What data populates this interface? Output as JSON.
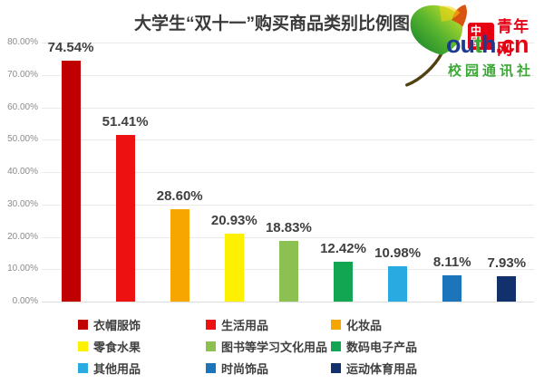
{
  "title": "大学生“双十一”购买商品类别比例图",
  "logo": {
    "leaf_icon": "ginkgo-leaf-icon",
    "brand_cn_boxed": "中國",
    "brand_cn": "青年网",
    "domain_ou": "ou",
    "domain_t": "t",
    "domain_h": "h",
    "domain_cn": ".cn",
    "brand_sub": "校园通讯社",
    "brand_red": "#e60012",
    "brand_navy": "#1d3a8f",
    "brand_green": "#3aa935"
  },
  "chart_data": {
    "type": "bar",
    "title": "大学生“双十一”购买商品类别比例图",
    "categories": [
      "衣帽服饰",
      "生活用品",
      "化妆品",
      "零食水果",
      "图书等学习文化用品",
      "数码电子产品",
      "其他用品",
      "时尚饰品",
      "运动体育用品"
    ],
    "values": [
      74.54,
      51.41,
      28.6,
      20.93,
      18.83,
      12.42,
      10.98,
      8.11,
      7.93
    ],
    "value_labels": [
      "74.54%",
      "51.41%",
      "28.60%",
      "20.93%",
      "18.83%",
      "12.42%",
      "10.98%",
      "8.11%",
      "7.93%"
    ],
    "colors": [
      "#c00000",
      "#ee1111",
      "#f7a600",
      "#fdf000",
      "#8cc152",
      "#12a653",
      "#29abe2",
      "#1c75bb",
      "#12306b"
    ],
    "xlabel": "",
    "ylabel": "",
    "ylim": [
      0,
      80
    ],
    "ytick_step": 10,
    "ytick_labels": [
      "0.00%",
      "10.00%",
      "20.00%",
      "30.00%",
      "40.00%",
      "50.00%",
      "60.00%",
      "70.00%",
      "80.00%"
    ],
    "grid": true,
    "legend_position": "bottom"
  }
}
